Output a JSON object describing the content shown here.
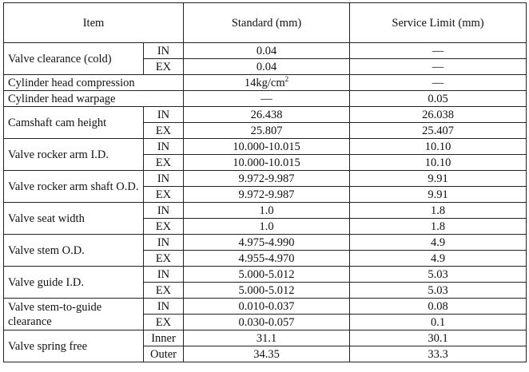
{
  "header": {
    "item": "Item",
    "standard": "Standard (mm)",
    "limit": "Service Limit (mm)"
  },
  "rows": [
    {
      "item": "Valve clearance (cold)",
      "subs": [
        {
          "sub": "IN",
          "std": "0.04",
          "lim": "—"
        },
        {
          "sub": "EX",
          "std": "0.04",
          "lim": "—"
        }
      ]
    },
    {
      "item": "Cylinder head compression",
      "std": "14kg/cm",
      "std_sup": "2",
      "lim": "—"
    },
    {
      "item": "Cylinder head warpage",
      "std": "—",
      "lim": "0.05"
    },
    {
      "item": "Camshaft cam height",
      "subs": [
        {
          "sub": "IN",
          "std": "26.438",
          "lim": "26.038"
        },
        {
          "sub": "EX",
          "std": "25.807",
          "lim": "25.407"
        }
      ]
    },
    {
      "item": "Valve rocker arm I.D.",
      "subs": [
        {
          "sub": "IN",
          "std": "10.000-10.015",
          "lim": "10.10"
        },
        {
          "sub": "EX",
          "std": "10.000-10.015",
          "lim": "10.10"
        }
      ]
    },
    {
      "item": "Valve rocker arm shaft O.D.",
      "subs": [
        {
          "sub": "IN",
          "std": "9.972-9.987",
          "lim": "9.91"
        },
        {
          "sub": "EX",
          "std": "9.972-9.987",
          "lim": "9.91"
        }
      ]
    },
    {
      "item": "Valve seat width",
      "subs": [
        {
          "sub": "IN",
          "std": "1.0",
          "lim": "1.8"
        },
        {
          "sub": "EX",
          "std": "1.0",
          "lim": "1.8"
        }
      ]
    },
    {
      "item": "Valve stem O.D.",
      "subs": [
        {
          "sub": "IN",
          "std": "4.975-4.990",
          "lim": "4.9"
        },
        {
          "sub": "EX",
          "std": "4.955-4.970",
          "lim": "4.9"
        }
      ]
    },
    {
      "item": "Valve guide I.D.",
      "subs": [
        {
          "sub": "IN",
          "std": "5.000-5.012",
          "lim": "5.03"
        },
        {
          "sub": "EX",
          "std": "5.000-5.012",
          "lim": "5.03"
        }
      ]
    },
    {
      "item": "Valve stem-to-guide clearance",
      "subs": [
        {
          "sub": "IN",
          "std": "0.010-0.037",
          "lim": "0.08"
        },
        {
          "sub": "EX",
          "std": "0.030-0.057",
          "lim": "0.1"
        }
      ]
    },
    {
      "item": "Valve spring free",
      "subs": [
        {
          "sub": "Inner",
          "std": "31.1",
          "lim": "30.1"
        },
        {
          "sub": "Outer",
          "std": "34.35",
          "lim": "33.3"
        }
      ]
    }
  ]
}
